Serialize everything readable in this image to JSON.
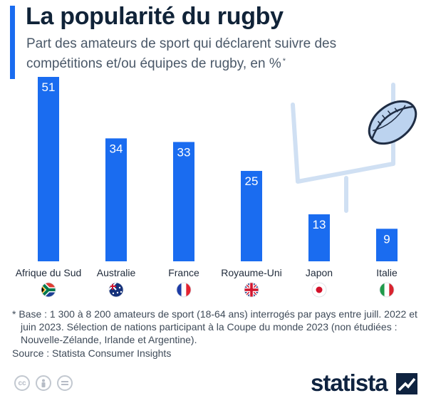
{
  "header": {
    "title": "La popularité du rugby",
    "subtitle": "Part des amateurs de sport qui déclarent suivre des compétitions et/ou équipes de rugby, en %",
    "subtitle_mark": "*"
  },
  "chart_data": {
    "type": "bar",
    "title": "La popularité du rugby",
    "categories": [
      "Afrique du Sud",
      "Australie",
      "France",
      "Royaume-Uni",
      "Japon",
      "Italie"
    ],
    "values": [
      51,
      34,
      33,
      25,
      13,
      9
    ],
    "flags": [
      "south-africa",
      "australia",
      "france",
      "united-kingdom",
      "japan",
      "italy"
    ],
    "ylim": [
      0,
      51
    ],
    "unit": "%",
    "grid": false,
    "bar_color": "#1a6cf0",
    "label_color": "#ffffff",
    "decoration": "rugby-goal-and-ball"
  },
  "footnote": {
    "line": "* Base : 1 300 à 8 200 amateurs de sport (18-64 ans) interrogés par pays entre juill. 2022 et juin 2023. Sélection de nations participant à la Coupe du monde 2023 (non étudiées : Nouvelle-Zélande, Irlande et Argentine).",
    "source": "Source : Statista Consumer Insights"
  },
  "license_icons": [
    "cc",
    "by",
    "nd"
  ],
  "brand": {
    "name": "statista"
  }
}
